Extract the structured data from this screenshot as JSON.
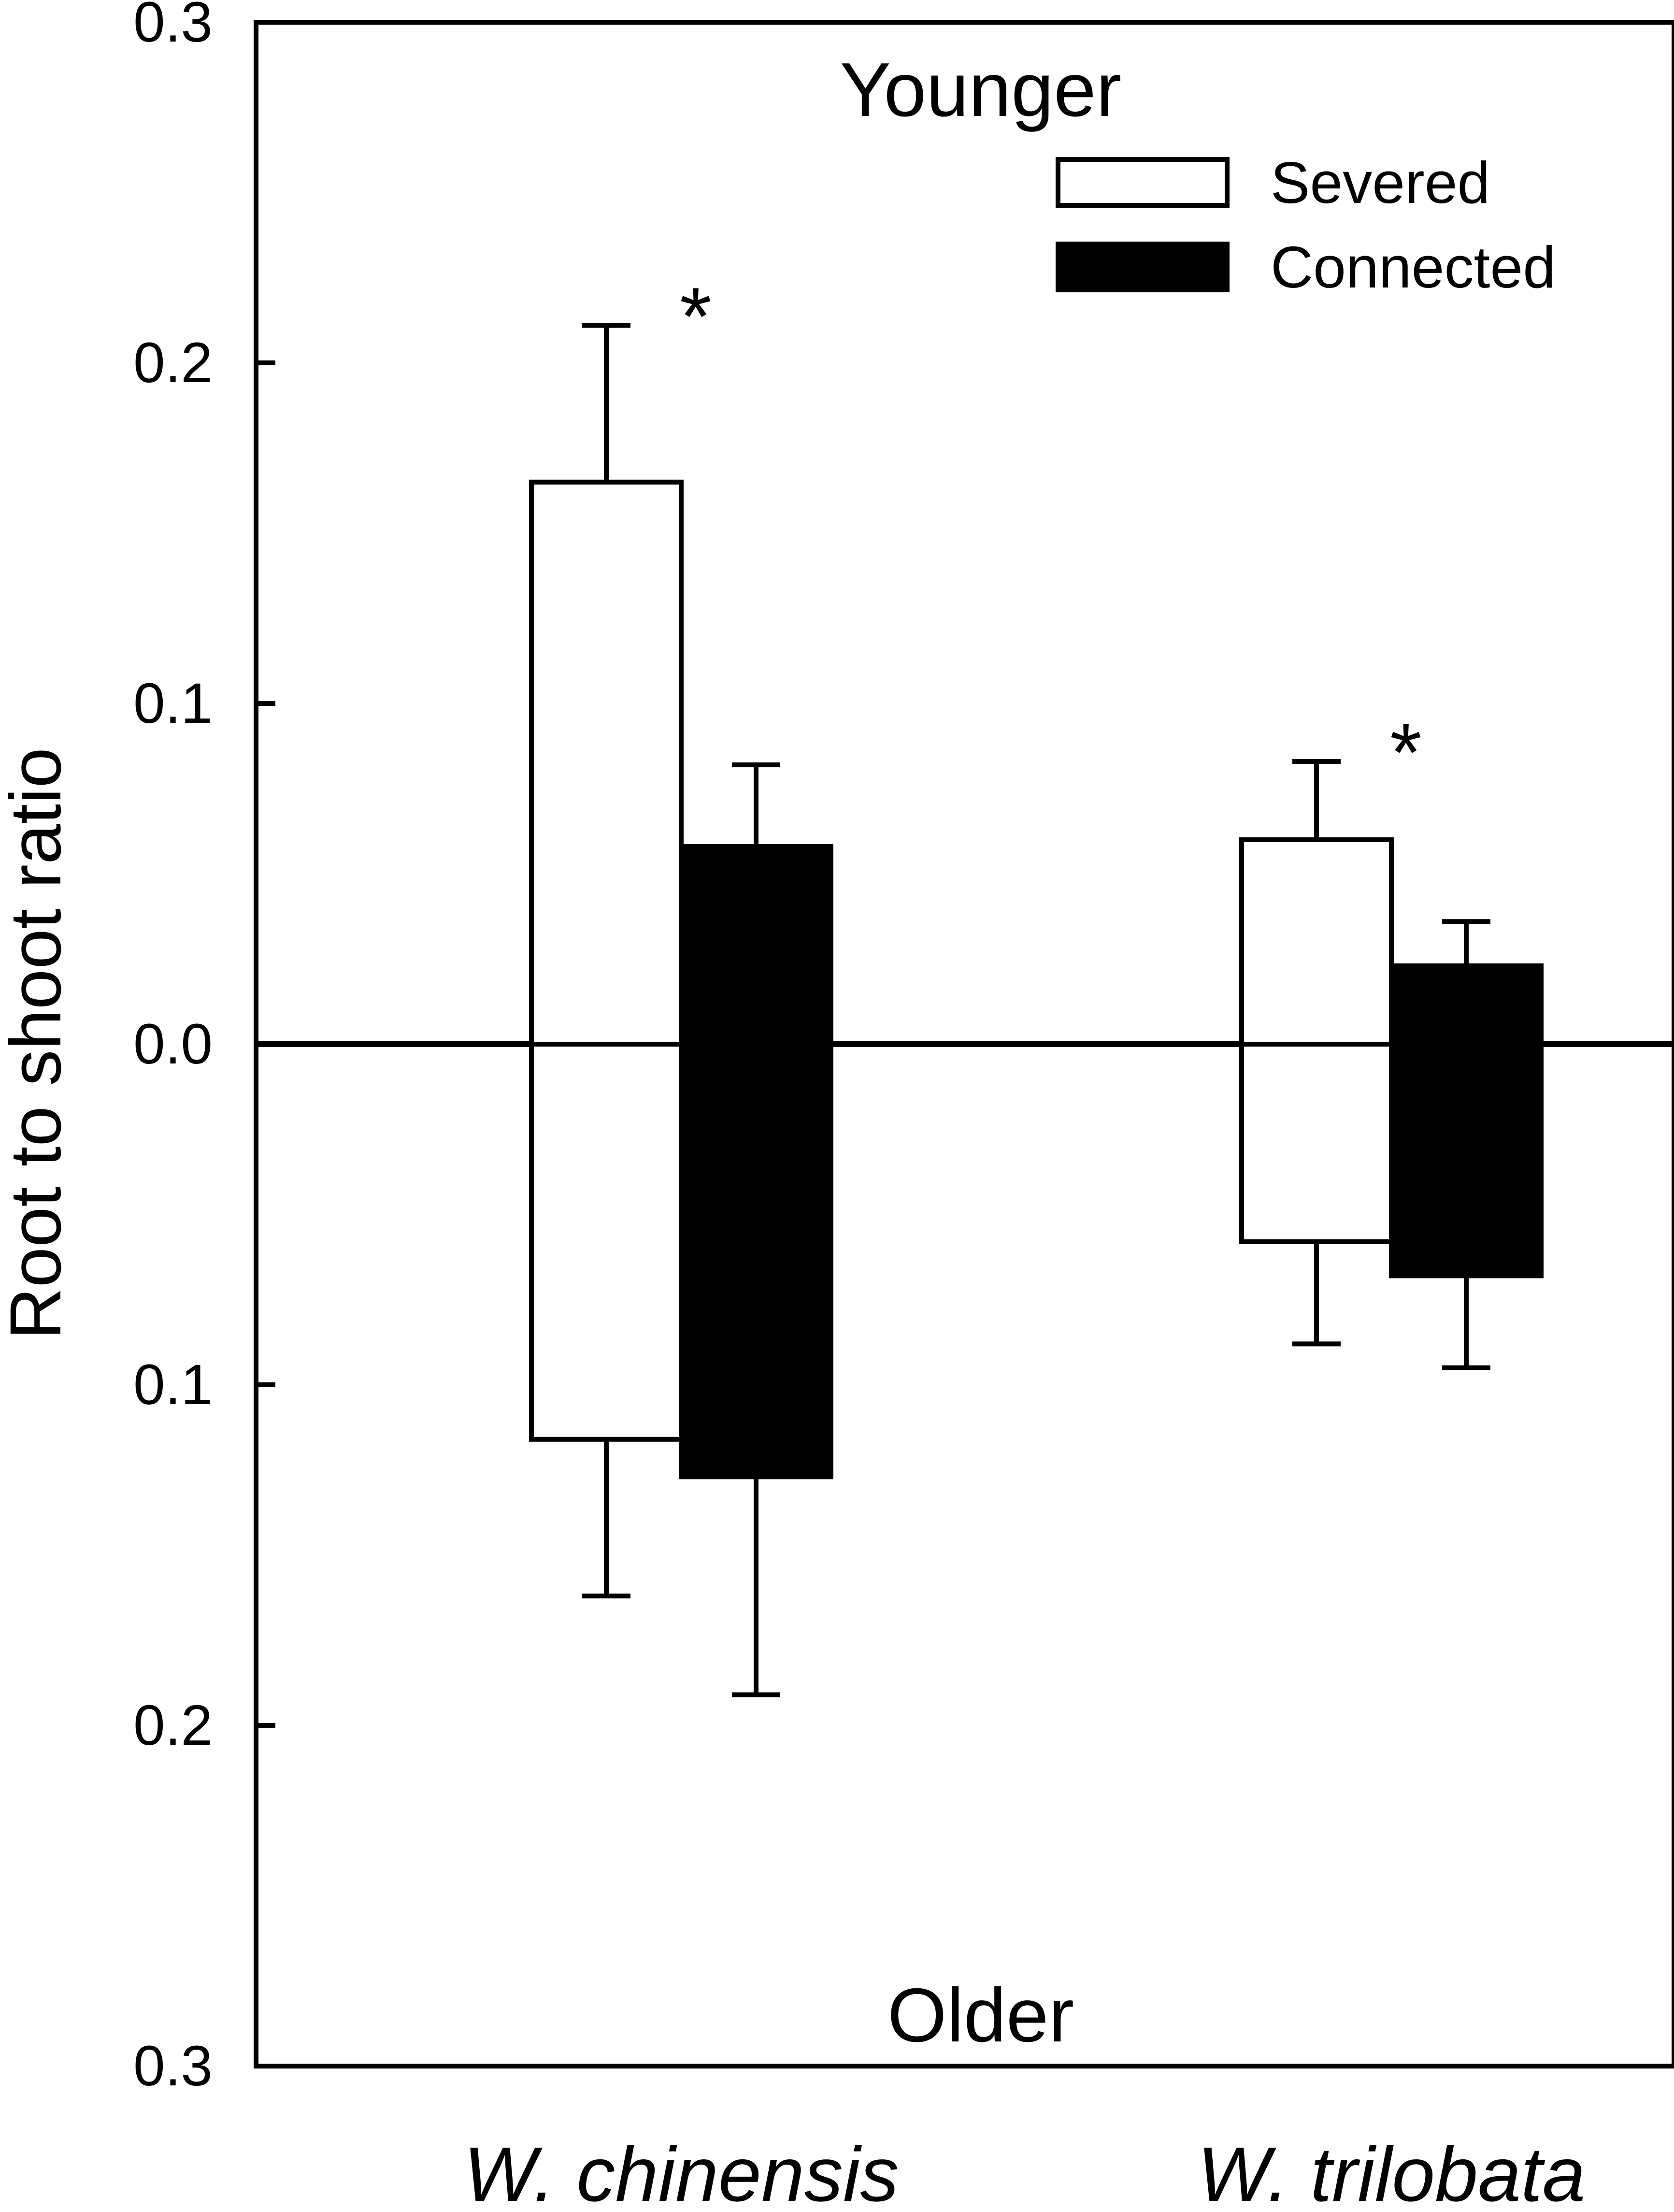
{
  "chart_data": {
    "type": "bar",
    "title": "",
    "xlabel": "",
    "ylabel": "Root to shoot ratio",
    "ylim": [
      -0.3,
      0.3
    ],
    "yticks": [
      0.3,
      0.2,
      0.1,
      0.0,
      -0.1,
      -0.2,
      -0.3
    ],
    "ytick_labels": [
      "0.3",
      "0.2",
      "0.1",
      "0.0",
      "0.1",
      "0.2",
      "0.3"
    ],
    "region_labels": {
      "top": "Younger",
      "bottom": "Older"
    },
    "categories": [
      "W. chinensis",
      "W. trilobata"
    ],
    "series": [
      {
        "name": "Severed",
        "color": "#ffffff",
        "younger": [
          0.165,
          0.06
        ],
        "younger_error": [
          0.046,
          0.023
        ],
        "older": [
          -0.116,
          -0.058
        ],
        "older_error": [
          0.046,
          0.03
        ]
      },
      {
        "name": "Connected",
        "color": "#000000",
        "younger": [
          0.058,
          0.023
        ],
        "younger_error": [
          0.024,
          0.013
        ],
        "older": [
          -0.127,
          -0.068
        ],
        "older_error": [
          0.064,
          0.027
        ]
      }
    ],
    "annotations": [
      {
        "text": "*",
        "category": "W. chinensis"
      },
      {
        "text": "*",
        "category": "W. trilobata"
      }
    ],
    "legend": {
      "position": "top-right"
    },
    "grid": false
  }
}
